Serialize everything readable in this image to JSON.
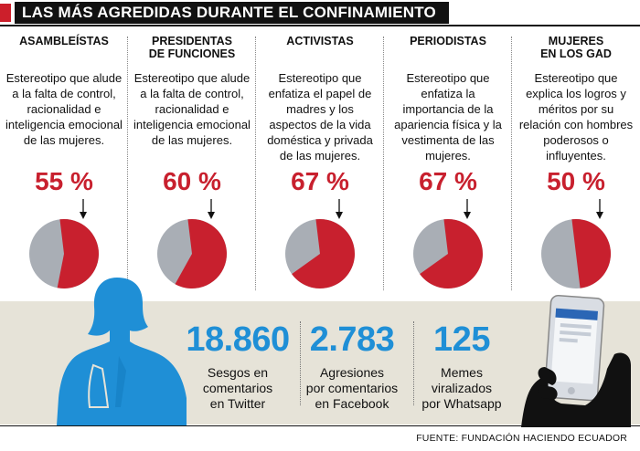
{
  "header": {
    "title": "LAS MÁS AGREDIDAS DURANTE EL CONFINAMIENTO"
  },
  "colors": {
    "accent_red": "#c8202e",
    "pie_red": "#c8202e",
    "pie_gray": "#a9aeb5",
    "stat_blue": "#1f8fd6",
    "bottom_bg": "#e6e3d8"
  },
  "chart_data": {
    "type": "pie",
    "title": "LAS MÁS AGREDIDAS DURANTE EL CONFINAMIENTO",
    "groups": [
      {
        "name": "ASAMBLEÍSTAS",
        "name_lines": [
          "ASAMBLEÍSTAS"
        ],
        "description": "Estereotipo que alude a la falta de control, racionalidad e inteligencia emocional de las mujeres.",
        "value": 55,
        "value_label": "55 %"
      },
      {
        "name": "PRESIDENTAS DE FUNCIONES",
        "name_lines": [
          "PRESIDENTAS",
          "DE FUNCIONES"
        ],
        "description": "Estereotipo que alude a la falta de control, racionalidad e inteligencia emocional de las mujeres.",
        "value": 60,
        "value_label": "60 %"
      },
      {
        "name": "ACTIVISTAS",
        "name_lines": [
          "ACTIVISTAS"
        ],
        "description": "Estereotipo que enfatiza el papel de madres y los aspectos de la vida doméstica y privada de las mujeres.",
        "value": 67,
        "value_label": "67 %"
      },
      {
        "name": "PERIODISTAS",
        "name_lines": [
          "PERIODISTAS"
        ],
        "description": "Estereotipo que enfatiza la importancia de la apariencia física y la vestimenta de las mujeres.",
        "value": 67,
        "value_label": "67 %"
      },
      {
        "name": "MUJERES EN LOS GAD",
        "name_lines": [
          "MUJERES",
          "EN LOS GAD"
        ],
        "description": "Estereotipo que explica los logros y méritos por su relación con hombres poderosos o influyentes.",
        "value": 50,
        "value_label": "50 %"
      }
    ]
  },
  "stats": [
    {
      "number": "18.860",
      "label_lines": [
        "Sesgos en",
        "comentarios",
        "en Twitter"
      ]
    },
    {
      "number": "2.783",
      "label_lines": [
        "Agresiones",
        "por comentarios",
        "en Facebook"
      ]
    },
    {
      "number": "125",
      "label_lines": [
        "Memes",
        "viralizados",
        "por Whatsapp"
      ]
    }
  ],
  "footer": {
    "source": "FUENTE: FUNDACIÓN HACIENDO ECUADOR"
  },
  "icons": {
    "woman": "woman-silhouette-icon",
    "phone": "hand-holding-phone-icon",
    "arrow": "arrow-down-icon"
  }
}
